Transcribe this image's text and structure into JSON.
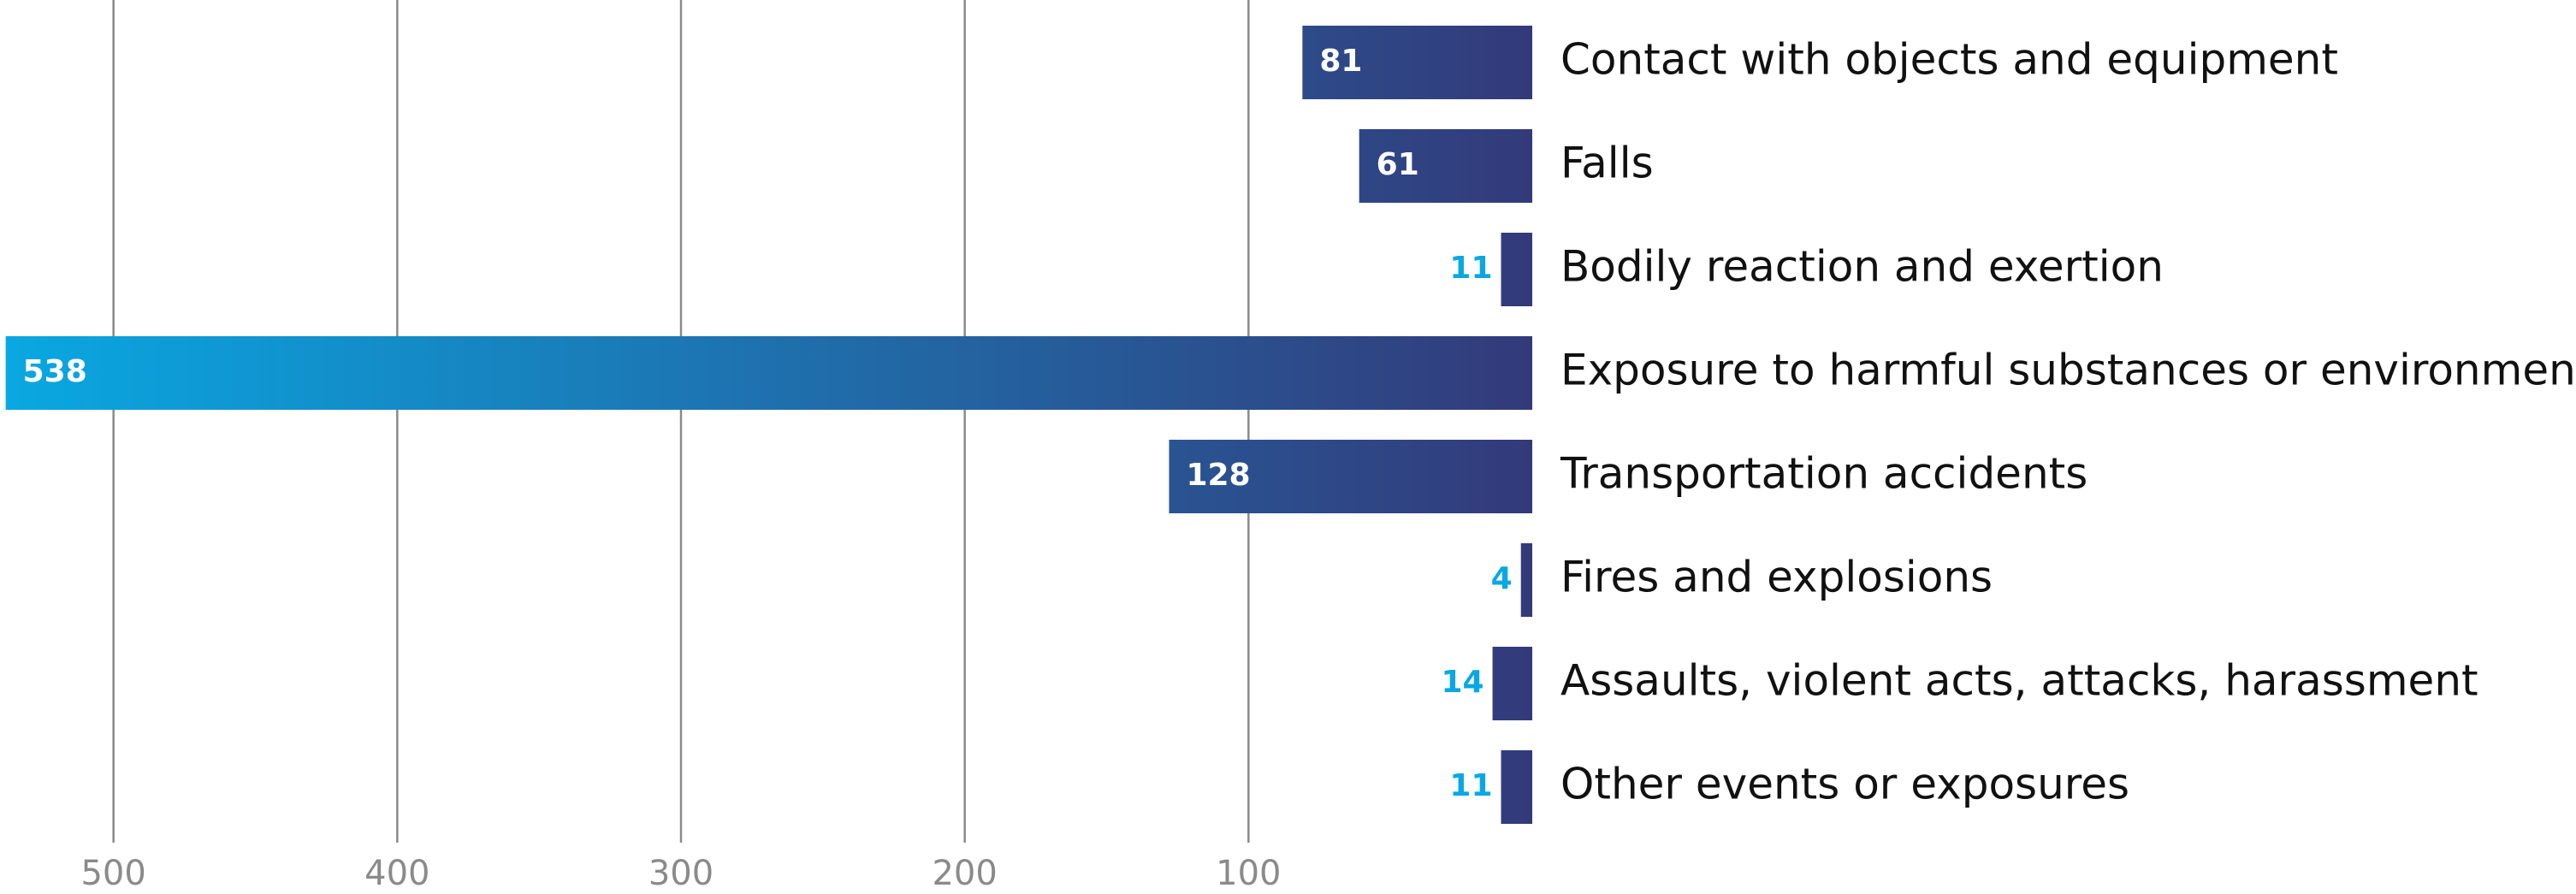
{
  "chart_data": {
    "type": "bar",
    "orientation": "horizontal",
    "direction": "leftward",
    "categories": [
      "Contact with objects and equipment",
      "Falls",
      "Bodily reaction and exertion",
      "Exposure to harmful substances or environments",
      "Transportation accidents",
      "Fires and explosions",
      "Assaults, violent acts, attacks, harassment",
      "Other events or exposures"
    ],
    "values": [
      81,
      61,
      11,
      538,
      128,
      4,
      14,
      11
    ],
    "gradient": [
      "#09a8e2",
      "#333a7a"
    ],
    "xlim": [
      0,
      540
    ],
    "xticks": [
      100,
      200,
      300,
      400,
      500
    ],
    "grid": true
  }
}
